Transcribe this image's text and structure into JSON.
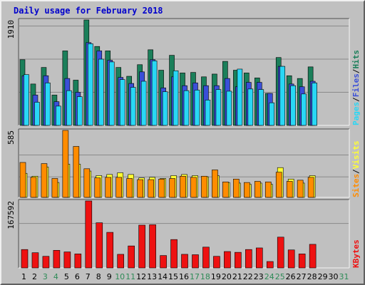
{
  "title": "Daily usage for February 2018",
  "colors": {
    "background": "#c0c0c0",
    "panel": "#c0c0c0",
    "title": "#0000cc",
    "hits": "#1b7f5a",
    "files": "#3a4fd8",
    "pages": "#29d7f5",
    "visits": "#ffff33",
    "sites": "#ff8c00",
    "kbytes": "#ee1111",
    "weekend_label": "#2e8b57",
    "weekday_label": "#000000"
  },
  "chart_data": [
    {
      "type": "bar",
      "panel": "hits-files-pages",
      "categories": [
        "1",
        "2",
        "3",
        "4",
        "5",
        "6",
        "7",
        "8",
        "9",
        "10",
        "11",
        "12",
        "13",
        "14",
        "15",
        "16",
        "17",
        "18",
        "19",
        "20",
        "21",
        "22",
        "23",
        "24",
        "25",
        "26",
        "27",
        "28",
        "29",
        "30",
        "31"
      ],
      "scale_max_label": "1910",
      "ylim": [
        0,
        1910
      ],
      "series": [
        {
          "name": "Hits",
          "color": "hits",
          "values": [
            1190,
            750,
            1050,
            550,
            1350,
            820,
            1910,
            1430,
            1350,
            1050,
            890,
            1100,
            1370,
            1000,
            1270,
            950,
            960,
            880,
            930,
            1160,
            1000,
            950,
            860,
            580,
            1230,
            900,
            850,
            1060,
            null,
            null,
            null
          ]
        },
        {
          "name": "Files",
          "color": "files",
          "values": [
            900,
            550,
            900,
            430,
            850,
            600,
            1500,
            1350,
            1180,
            870,
            760,
            970,
            1190,
            680,
            880,
            720,
            770,
            720,
            720,
            850,
            700,
            780,
            780,
            580,
            1070,
            750,
            700,
            800,
            null,
            null,
            null
          ]
        },
        {
          "name": "Pages",
          "color": "pages",
          "values": [
            920,
            420,
            770,
            350,
            630,
            520,
            1480,
            1200,
            1150,
            830,
            690,
            800,
            1170,
            610,
            990,
            630,
            640,
            460,
            650,
            620,
            1020,
            660,
            650,
            410,
            1070,
            720,
            570,
            770,
            null,
            null,
            null
          ]
        }
      ],
      "vertical_labels": [
        "Pages",
        "Files",
        "Hits"
      ]
    },
    {
      "type": "bar",
      "panel": "visits-sites",
      "categories": [
        "1",
        "2",
        "3",
        "4",
        "5",
        "6",
        "7",
        "8",
        "9",
        "10",
        "11",
        "12",
        "13",
        "14",
        "15",
        "16",
        "17",
        "18",
        "19",
        "20",
        "21",
        "22",
        "23",
        "24",
        "25",
        "26",
        "27",
        "28",
        "29",
        "30",
        "31"
      ],
      "scale_max_label": "585",
      "ylim": [
        0,
        585
      ],
      "series": [
        {
          "name": "Visits",
          "color": "visits",
          "values": [
            210,
            185,
            265,
            130,
            290,
            290,
            230,
            190,
            200,
            215,
            200,
            170,
            175,
            165,
            190,
            200,
            190,
            180,
            190,
            130,
            125,
            115,
            125,
            115,
            260,
            160,
            125,
            190,
            null,
            null,
            null
          ]
        },
        {
          "name": "Sites",
          "color": "sites",
          "values": [
            305,
            175,
            295,
            165,
            585,
            445,
            250,
            170,
            175,
            175,
            165,
            155,
            155,
            160,
            165,
            185,
            175,
            185,
            240,
            135,
            160,
            130,
            140,
            135,
            220,
            140,
            150,
            175,
            null,
            null,
            null
          ]
        }
      ],
      "vertical_labels": [
        "Sites",
        "Visits"
      ]
    },
    {
      "type": "bar",
      "panel": "kbytes",
      "categories": [
        "1",
        "2",
        "3",
        "4",
        "5",
        "6",
        "7",
        "8",
        "9",
        "10",
        "11",
        "12",
        "13",
        "14",
        "15",
        "16",
        "17",
        "18",
        "19",
        "20",
        "21",
        "22",
        "23",
        "24",
        "25",
        "26",
        "27",
        "28",
        "29",
        "30",
        "31"
      ],
      "scale_max_label": "167592",
      "ylim": [
        0,
        167592
      ],
      "series": [
        {
          "name": "KBytes",
          "color": "kbytes",
          "values": [
            46000,
            38000,
            29000,
            44000,
            40000,
            35000,
            167592,
            113000,
            89000,
            34000,
            55000,
            107000,
            108000,
            31000,
            71000,
            34000,
            33000,
            52000,
            29000,
            41000,
            39000,
            46000,
            50000,
            16000,
            77000,
            45000,
            35000,
            59000,
            null,
            null,
            null
          ]
        }
      ],
      "vertical_labels": [
        "KBytes"
      ]
    }
  ],
  "weekend_days": [
    "3",
    "4",
    "10",
    "11",
    "17",
    "18",
    "24",
    "25",
    "31"
  ]
}
